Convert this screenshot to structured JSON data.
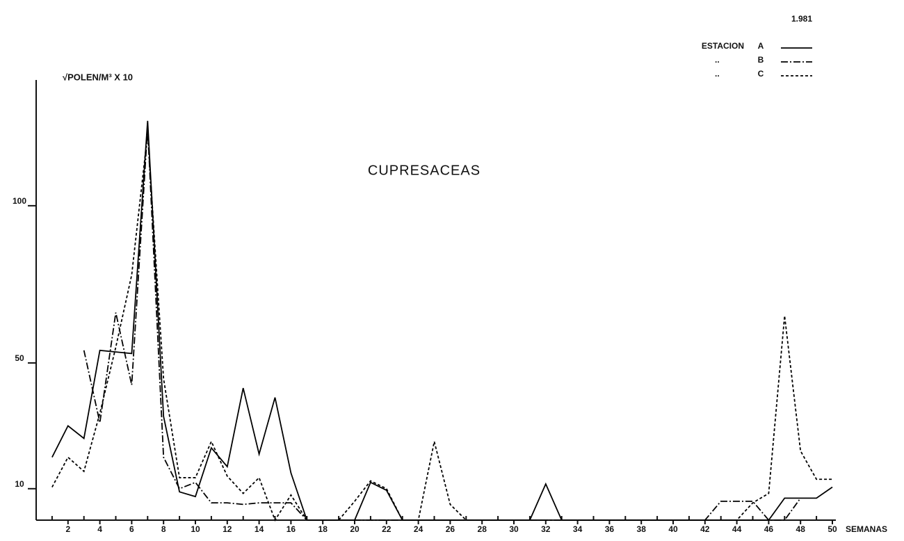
{
  "chart_data": {
    "type": "line",
    "title": "CUPRESACEAS",
    "year": "1.981",
    "ylabel": "√POLEN/M³ X 10",
    "xlabel": "SEMANAS",
    "legend_title": "ESTACION",
    "legend_ditto": "..",
    "legend_position": "upper right",
    "x": [
      1,
      2,
      3,
      4,
      5,
      6,
      7,
      8,
      9,
      10,
      11,
      12,
      13,
      14,
      15,
      16,
      17,
      18,
      19,
      20,
      21,
      22,
      23,
      24,
      25,
      26,
      27,
      28,
      29,
      30,
      31,
      32,
      33,
      34,
      35,
      36,
      37,
      38,
      39,
      40,
      41,
      42,
      43,
      44,
      45,
      46,
      47,
      48,
      49,
      50
    ],
    "series": [
      {
        "name": "A",
        "color": "#000000",
        "dash": "solid",
        "values": [
          20,
          30,
          26,
          54,
          53.5,
          53,
          127,
          33,
          9,
          7.5,
          23,
          17,
          42,
          21,
          39,
          15,
          0,
          0,
          0,
          0,
          12,
          9.5,
          0,
          0,
          0,
          0,
          0,
          0,
          0,
          0,
          0,
          11.5,
          0,
          0,
          0,
          0,
          0,
          0,
          0,
          0,
          0,
          0,
          0,
          0,
          0,
          0,
          7,
          7,
          7,
          10.5
        ]
      },
      {
        "name": "B",
        "color": "#000000",
        "dash": "dashdot",
        "values": [
          null,
          null,
          54,
          31,
          66,
          43,
          125,
          20,
          10,
          12,
          5.5,
          5.5,
          5,
          5.5,
          5.5,
          5.5,
          0,
          0,
          0,
          0,
          0,
          0,
          0,
          0,
          0,
          0,
          0,
          0,
          0,
          0,
          0,
          0,
          0,
          0,
          0,
          0,
          0,
          0,
          0,
          0,
          0,
          0,
          6,
          6,
          6,
          0,
          0,
          7,
          null,
          null
        ]
      },
      {
        "name": "C",
        "color": "#000000",
        "dash": "dotted",
        "values": [
          10.5,
          20,
          15.5,
          34,
          55,
          78,
          123,
          45,
          13.5,
          13.5,
          25,
          14,
          8.5,
          13.5,
          0,
          8,
          0,
          0,
          0,
          6,
          12.5,
          10,
          0,
          0,
          25,
          5,
          0,
          0,
          0,
          0,
          0,
          0,
          0,
          0,
          0,
          0,
          0,
          0,
          0,
          0,
          0,
          0,
          0,
          0,
          5.5,
          8.5,
          65,
          22,
          13,
          13
        ]
      }
    ],
    "xlim": [
      0,
      50
    ],
    "xticks": [
      2,
      4,
      6,
      8,
      10,
      12,
      14,
      16,
      18,
      20,
      22,
      24,
      26,
      28,
      30,
      32,
      34,
      36,
      38,
      40,
      42,
      44,
      46,
      48,
      50
    ],
    "xminorticks": [
      1,
      3,
      5,
      7,
      9,
      11,
      13,
      15,
      17,
      19,
      21,
      23,
      25,
      27,
      29,
      31,
      33,
      35,
      37,
      39,
      41,
      43,
      45,
      47,
      49
    ],
    "ylim": [
      0,
      140
    ],
    "yticks": [
      10,
      50,
      100
    ],
    "grid": false
  }
}
